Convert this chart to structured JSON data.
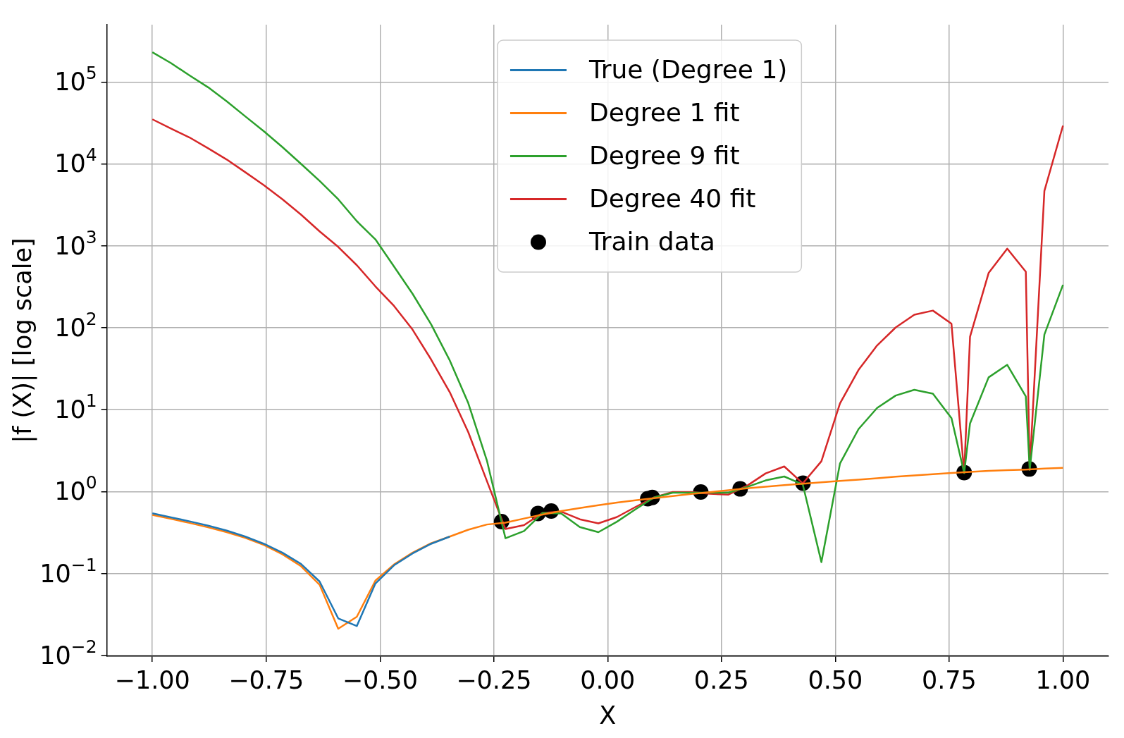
{
  "chart_data": {
    "type": "line",
    "xlabel": "X",
    "ylabel": "|f (X)| [log scale]",
    "log": "y",
    "grid": true,
    "legend": "top",
    "xlim": [
      -1.1,
      1.1
    ],
    "ylim": [
      0.0098,
      500000
    ],
    "xticks": [
      {
        "value": -1,
        "label": "−1.00"
      },
      {
        "value": -0.75,
        "label": "−0.75"
      },
      {
        "value": -0.5,
        "label": "−0.50"
      },
      {
        "value": -0.25,
        "label": "−0.25"
      },
      {
        "value": 0,
        "label": "0.00"
      },
      {
        "value": 0.25,
        "label": "0.25"
      },
      {
        "value": 0.5,
        "label": "0.50"
      },
      {
        "value": 0.75,
        "label": "0.75"
      },
      {
        "value": 1,
        "label": "1.00"
      }
    ],
    "yticks": [
      {
        "value": 0.01,
        "label": "10$^{−2}$"
      },
      {
        "value": 0.1,
        "label": "10$^{−1}$"
      },
      {
        "value": 1,
        "label": "10$^{0}$"
      },
      {
        "value": 10,
        "label": "10$^{1}$"
      },
      {
        "value": 100,
        "label": "10$^{2}$"
      },
      {
        "value": 1000,
        "label": "10$^{3}$"
      },
      {
        "value": 10000,
        "label": "10$^{4}$"
      },
      {
        "value": 100000,
        "label": "10$^{5}$"
      }
    ],
    "x": [
      -1,
      -0.9592,
      -0.9184,
      -0.8776,
      -0.8367,
      -0.7959,
      -0.7551,
      -0.7143,
      -0.6735,
      -0.6327,
      -0.5918,
      -0.551,
      -0.5102,
      -0.4694,
      -0.4286,
      -0.3878,
      -0.3469,
      -0.3061,
      -0.2653,
      -0.2245,
      -0.1837,
      -0.1429,
      -0.102,
      -0.0612,
      -0.0204,
      0.0204,
      0.0612,
      0.102,
      0.1429,
      0.1837,
      0.2245,
      0.2653,
      0.3061,
      0.3469,
      0.3878,
      0.4286,
      0.4694,
      0.5102,
      0.551,
      0.5918,
      0.6327,
      0.6735,
      0.7143,
      0.7551,
      0.7959,
      0.8367,
      0.8776,
      0.9184,
      0.9592,
      1
    ],
    "series": [
      {
        "name": "True (Degree 1)",
        "color": "#1f77b4",
        "values": [
          0.544,
          0.486,
          0.434,
          0.384,
          0.335,
          0.283,
          0.231,
          0.18,
          0.131,
          0.08,
          0.0284,
          0.0229,
          0.0757,
          0.126,
          0.176,
          0.231,
          0.283,
          null,
          null,
          null,
          null,
          null,
          null,
          null,
          null,
          null,
          null,
          null,
          null,
          null,
          null,
          null,
          null,
          null,
          null,
          null,
          null,
          null,
          null,
          null,
          null,
          null,
          null,
          null,
          null,
          null,
          null,
          null,
          null,
          null
        ]
      },
      {
        "name": "Degree 1 fit",
        "color": "#ff7f0e",
        "values": [
          0.52,
          0.465,
          0.415,
          0.367,
          0.32,
          0.273,
          0.224,
          0.172,
          0.123,
          0.073,
          0.0212,
          0.0297,
          0.082,
          0.129,
          0.18,
          0.235,
          0.283,
          0.343,
          0.397,
          0.418,
          0.47,
          0.526,
          0.58,
          0.63,
          0.684,
          0.735,
          0.785,
          0.832,
          0.883,
          0.936,
          0.987,
          1.04,
          1.1,
          1.15,
          1.2,
          1.25,
          1.3,
          1.35,
          1.4,
          1.46,
          1.52,
          1.58,
          1.63,
          1.69,
          1.74,
          1.79,
          1.83,
          1.86,
          1.91,
          1.95
        ]
      },
      {
        "name": "Degree 9 fit",
        "color": "#2ca02c",
        "x": [
          -1,
          -0.9592,
          -0.9184,
          -0.8776,
          -0.8367,
          -0.7959,
          -0.7551,
          -0.7143,
          -0.6735,
          -0.6327,
          -0.5918,
          -0.551,
          -0.5102,
          -0.4694,
          -0.4286,
          -0.3878,
          -0.3469,
          -0.3061,
          -0.2653,
          -0.2245,
          -0.1837,
          -0.1429,
          -0.102,
          -0.0612,
          -0.0204,
          0.0204,
          0.0612,
          0.102,
          0.1429,
          0.1837,
          0.2245,
          0.2653,
          0.3061,
          0.3469,
          0.3878,
          0.4286,
          0.4694,
          0.5102,
          0.551,
          0.5918,
          0.6327,
          0.6735,
          0.7143,
          0.7551,
          0.783,
          0.7959,
          0.8367,
          0.8776,
          0.9184,
          0.927,
          0.9592,
          1
        ],
        "values": [
          230000,
          170000,
          120000,
          86000,
          58000,
          38000,
          25000,
          16000,
          10000,
          6200,
          3700,
          2000,
          1200,
          560,
          260,
          110,
          40,
          12,
          2.4,
          0.27,
          0.33,
          0.55,
          0.54,
          0.37,
          0.32,
          0.43,
          0.61,
          0.85,
          0.97,
          0.97,
          0.97,
          0.97,
          1.14,
          1.37,
          1.53,
          1.22,
          0.138,
          2.2,
          5.8,
          10.5,
          14.9,
          17.5,
          15.7,
          7.9,
          1.69,
          6.8,
          24.8,
          35.3,
          14.5,
          1.85,
          82.6,
          334
        ]
      },
      {
        "name": "Degree 40 fit",
        "color": "#d62728",
        "x": [
          -1,
          -0.9592,
          -0.9184,
          -0.8776,
          -0.8367,
          -0.7959,
          -0.7551,
          -0.7143,
          -0.6735,
          -0.6327,
          -0.5918,
          -0.551,
          -0.5102,
          -0.4694,
          -0.4286,
          -0.3878,
          -0.3469,
          -0.3061,
          -0.2653,
          -0.2245,
          -0.1837,
          -0.1429,
          -0.102,
          -0.0612,
          -0.0204,
          0.0204,
          0.0612,
          0.102,
          0.1429,
          0.1837,
          0.2245,
          0.2653,
          0.3061,
          0.3469,
          0.3878,
          0.4286,
          0.4694,
          0.5102,
          0.551,
          0.5918,
          0.6327,
          0.6735,
          0.7143,
          0.7551,
          0.783,
          0.7959,
          0.8367,
          0.8776,
          0.9184,
          0.927,
          0.9592,
          1
        ],
        "values": [
          35000,
          27000,
          21000,
          15500,
          11300,
          7900,
          5500,
          3700,
          2400,
          1500,
          970,
          580,
          320,
          185,
          95,
          41,
          16.4,
          5.3,
          1.35,
          0.35,
          0.39,
          0.55,
          0.57,
          0.46,
          0.41,
          0.49,
          0.65,
          0.85,
          0.99,
          0.99,
          0.94,
          0.92,
          1.18,
          1.67,
          2.03,
          1.26,
          2.35,
          11.9,
          30.6,
          60.8,
          101,
          144,
          162,
          112,
          1.69,
          78,
          466,
          923,
          482,
          1.85,
          4680,
          29300
        ]
      },
      {
        "name": "Train data",
        "type": "scatter",
        "marker": "circle",
        "color": "#000000",
        "x": [
          -0.233,
          -0.153,
          -0.124,
          0.088,
          0.098,
          0.2045,
          0.291,
          0.429,
          0.783,
          0.926
        ],
        "values": [
          0.43,
          0.54,
          0.58,
          0.82,
          0.85,
          0.99,
          1.08,
          1.27,
          1.71,
          1.89
        ]
      }
    ]
  }
}
